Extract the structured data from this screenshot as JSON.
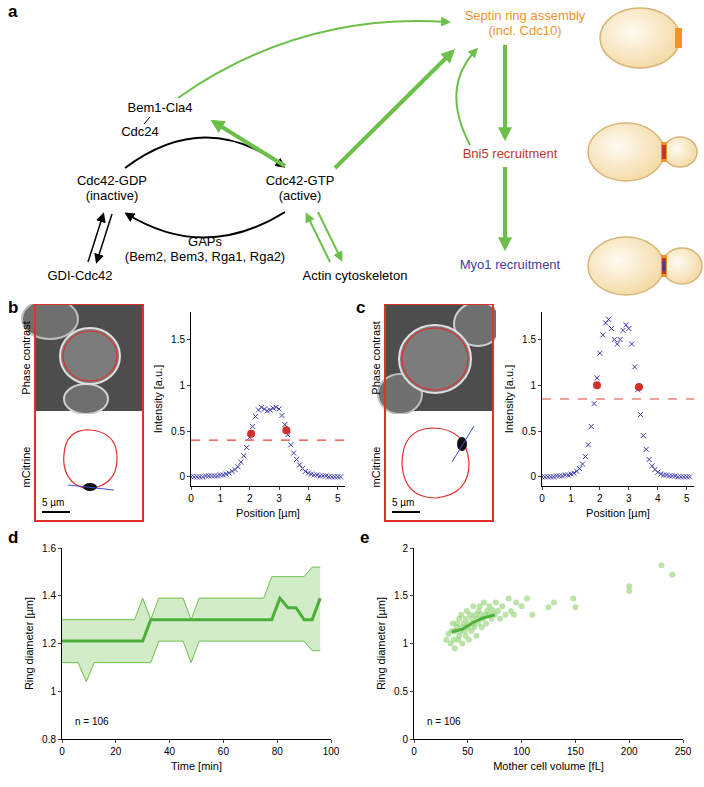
{
  "panel_labels": [
    "a",
    "b",
    "c",
    "d",
    "e"
  ],
  "diagram": {
    "nodes": {
      "bem1": {
        "lines": [
          "Bem1-Cla4"
        ],
        "color": "#000000"
      },
      "cdc24": {
        "lines": [
          "Cdc24"
        ],
        "color": "#000000"
      },
      "gdp": {
        "lines": [
          "Cdc42-GDP",
          "(inactive)"
        ],
        "color": "#000000"
      },
      "gtp": {
        "lines": [
          "Cdc42-GTP",
          "(active)"
        ],
        "color": "#000000"
      },
      "gdi": {
        "lines": [
          "GDI-Cdc42"
        ],
        "color": "#000000"
      },
      "gaps": {
        "lines": [
          "GAPs",
          "(Bem2, Bem3, Rga1, Rga2)"
        ],
        "color": "#000000"
      },
      "actin": {
        "lines": [
          "Actin cytoskeleton"
        ],
        "color": "#000000"
      },
      "septin": {
        "lines": [
          "Septin ring assembly",
          "(incl. Cdc10)"
        ],
        "color": "#f0932b"
      },
      "bni5": {
        "lines": [
          "Bni5 recruitment"
        ],
        "color": "#c0392b"
      },
      "myo1": {
        "lines": [
          "Myo1 recruitment"
        ],
        "color": "#3f3fa0"
      }
    }
  },
  "images": [
    {
      "channels": [
        "Phase contrast",
        "mCitrine"
      ],
      "scale_bar": "5 µm"
    },
    {
      "channels": [
        "Phase contrast",
        "mCitrine"
      ],
      "scale_bar": "5 µm"
    }
  ],
  "chart_data": [
    {
      "type": "scatter",
      "x": [
        0,
        0.1,
        0.2,
        0.3,
        0.4,
        0.5,
        0.6,
        0.7,
        0.8,
        0.9,
        1,
        1.1,
        1.2,
        1.3,
        1.4,
        1.5,
        1.6,
        1.7,
        1.8,
        1.9,
        2,
        2.1,
        2.2,
        2.3,
        2.4,
        2.5,
        2.6,
        2.7,
        2.8,
        2.9,
        3,
        3.1,
        3.2,
        3.3,
        3.4,
        3.5,
        3.6,
        3.7,
        3.8,
        3.9,
        4,
        4.1,
        4.2,
        4.3,
        4.4,
        4.5,
        4.6,
        4.7,
        4.8,
        4.9,
        5,
        5.1
      ],
      "xlim": [
        0,
        5.25
      ],
      "xticks": [
        0,
        1,
        2,
        3,
        4,
        5
      ],
      "ylim": [
        -0.1,
        1.8
      ],
      "yticks": [
        0,
        0.5,
        1,
        1.5
      ],
      "x_label": "Position [µm]",
      "y_label": "Intensity [a.u.]",
      "grid": false,
      "series": [
        {
          "type": "scatter",
          "marker": "x",
          "color": "#3a3ab0",
          "values": [
            0,
            0,
            0,
            0,
            0,
            0.01,
            0.01,
            0.01,
            0.01,
            0.01,
            0.02,
            0.02,
            0.03,
            0.04,
            0.06,
            0.08,
            0.11,
            0.16,
            0.23,
            0.32,
            0.43,
            0.55,
            0.66,
            0.73,
            0.76,
            0.74,
            0.72,
            0.73,
            0.75,
            0.76,
            0.74,
            0.67,
            0.57,
            0.46,
            0.35,
            0.26,
            0.19,
            0.13,
            0.09,
            0.06,
            0.04,
            0.03,
            0.02,
            0.02,
            0.01,
            0.01,
            0.01,
            0,
            0,
            0,
            0,
            0
          ]
        },
        {
          "type": "scatter",
          "marker": "circle",
          "color": "#d0312d",
          "x": [
            2.05,
            3.25
          ],
          "values": [
            0.47,
            0.51
          ]
        },
        {
          "type": "line",
          "line_style": "dashed",
          "color": "#e8403a",
          "x": [
            0,
            5.25
          ],
          "values": [
            0.4,
            0.4
          ]
        }
      ]
    },
    {
      "type": "scatter",
      "x": [
        0,
        0.1,
        0.2,
        0.3,
        0.4,
        0.5,
        0.6,
        0.7,
        0.8,
        0.9,
        1,
        1.1,
        1.2,
        1.3,
        1.4,
        1.5,
        1.6,
        1.7,
        1.8,
        1.9,
        2,
        2.1,
        2.2,
        2.3,
        2.4,
        2.5,
        2.6,
        2.7,
        2.8,
        2.9,
        3,
        3.1,
        3.2,
        3.3,
        3.4,
        3.5,
        3.6,
        3.7,
        3.8,
        3.9,
        4,
        4.1,
        4.2,
        4.3,
        4.4,
        4.5,
        4.6,
        4.7,
        4.8,
        4.9,
        5,
        5.1
      ],
      "xlim": [
        0,
        5.25
      ],
      "xticks": [
        0,
        1,
        2,
        3,
        4,
        5
      ],
      "ylim": [
        -0.1,
        1.8
      ],
      "yticks": [
        0,
        0.5,
        1,
        1.5
      ],
      "x_label": "Position [µm]",
      "y_label": "Intensity [a.u.]",
      "grid": false,
      "series": [
        {
          "type": "scatter",
          "marker": "x",
          "color": "#3a3ab0",
          "values": [
            0,
            0,
            0,
            0,
            0,
            0.01,
            0.01,
            0.01,
            0.02,
            0.02,
            0.03,
            0.04,
            0.06,
            0.09,
            0.14,
            0.22,
            0.35,
            0.55,
            0.8,
            1.08,
            1.35,
            1.55,
            1.68,
            1.72,
            1.62,
            1.5,
            1.45,
            1.5,
            1.6,
            1.66,
            1.62,
            1.45,
            1.2,
            0.95,
            0.68,
            0.45,
            0.3,
            0.19,
            0.12,
            0.08,
            0.05,
            0.03,
            0.02,
            0.02,
            0.01,
            0.01,
            0.01,
            0,
            0,
            0,
            0,
            0
          ]
        },
        {
          "type": "scatter",
          "marker": "circle",
          "color": "#d0312d",
          "x": [
            1.9,
            3.35
          ],
          "values": [
            1.0,
            0.98
          ]
        },
        {
          "type": "line",
          "line_style": "dashed",
          "color": "#e8403a",
          "x": [
            0,
            5.25
          ],
          "values": [
            0.85,
            0.85
          ]
        }
      ]
    },
    {
      "type": "line",
      "x": [
        0,
        3,
        6,
        9,
        12,
        15,
        18,
        21,
        24,
        27,
        30,
        33,
        36,
        39,
        42,
        45,
        48,
        51,
        54,
        57,
        60,
        63,
        66,
        69,
        72,
        75,
        78,
        81,
        84,
        87,
        90,
        93,
        96
      ],
      "xlim": [
        0,
        100
      ],
      "xticks": [
        0,
        20,
        40,
        60,
        80,
        100
      ],
      "ylim": [
        0.8,
        1.6
      ],
      "yticks": [
        0.8,
        1,
        1.2,
        1.4,
        1.6
      ],
      "x_label": "Time [min]",
      "y_label": "Ring diameter [µm]",
      "grid": false,
      "annotations": [
        "n = 106"
      ],
      "series": [
        {
          "type": "band",
          "color": "#6cc04a",
          "lower": [
            1.12,
            1.12,
            1.12,
            1.04,
            1.12,
            1.12,
            1.12,
            1.12,
            1.12,
            1.12,
            1.12,
            1.12,
            1.21,
            1.21,
            1.21,
            1.21,
            1.12,
            1.21,
            1.21,
            1.21,
            1.21,
            1.21,
            1.21,
            1.21,
            1.21,
            1.21,
            1.21,
            1.21,
            1.21,
            1.21,
            1.21,
            1.17,
            1.17
          ],
          "upper": [
            1.3,
            1.3,
            1.3,
            1.3,
            1.3,
            1.3,
            1.3,
            1.3,
            1.3,
            1.3,
            1.39,
            1.3,
            1.39,
            1.39,
            1.39,
            1.39,
            1.3,
            1.39,
            1.39,
            1.39,
            1.39,
            1.39,
            1.39,
            1.39,
            1.39,
            1.39,
            1.48,
            1.48,
            1.48,
            1.48,
            1.48,
            1.52,
            1.52
          ]
        },
        {
          "type": "line",
          "line_style": "solid",
          "color": "#4caf3a",
          "values": [
            1.21,
            1.21,
            1.21,
            1.21,
            1.21,
            1.21,
            1.21,
            1.21,
            1.21,
            1.21,
            1.21,
            1.3,
            1.3,
            1.3,
            1.3,
            1.3,
            1.3,
            1.3,
            1.3,
            1.3,
            1.3,
            1.3,
            1.3,
            1.3,
            1.3,
            1.3,
            1.3,
            1.39,
            1.35,
            1.35,
            1.3,
            1.3,
            1.39
          ]
        }
      ]
    },
    {
      "type": "scatter",
      "xlim": [
        0,
        250
      ],
      "xticks": [
        0,
        50,
        100,
        150,
        200,
        250
      ],
      "ylim": [
        0,
        2
      ],
      "yticks": [
        0,
        0.5,
        1,
        1.5,
        2
      ],
      "x_label": "Mother cell volume [fL]",
      "y_label": "Ring diameter [µm]",
      "grid": false,
      "annotations": [
        "n = 106"
      ],
      "series": [
        {
          "type": "scatter",
          "marker": "circle",
          "color": "#8fd16f",
          "x": [
            30,
            32,
            34,
            35,
            36,
            37,
            38,
            38,
            40,
            40,
            41,
            42,
            42,
            43,
            44,
            45,
            45,
            46,
            47,
            48,
            48,
            49,
            50,
            50,
            51,
            52,
            53,
            54,
            55,
            55,
            56,
            57,
            58,
            59,
            60,
            60,
            61,
            62,
            63,
            64,
            65,
            66,
            67,
            68,
            70,
            70,
            72,
            73,
            75,
            76,
            78,
            80,
            82,
            85,
            88,
            90,
            93,
            95,
            100,
            105,
            110,
            125,
            130,
            148,
            150,
            200,
            200,
            230,
            240
          ],
          "values": [
            1.04,
            1.1,
            1.0,
            1.13,
            1.21,
            1.04,
            0.95,
            1.13,
            1.17,
            1.21,
            1.04,
            1.08,
            1.26,
            1.13,
            1.3,
            1.17,
            1.0,
            1.21,
            1.13,
            1.08,
            1.26,
            1.34,
            1.17,
            1.21,
            1.04,
            1.3,
            1.13,
            1.26,
            1.21,
            1.39,
            1.17,
            1.3,
            1.08,
            1.26,
            1.21,
            1.34,
            1.39,
            1.3,
            1.17,
            1.26,
            1.43,
            1.3,
            1.21,
            1.34,
            1.3,
            1.39,
            1.26,
            1.35,
            1.3,
            1.43,
            1.34,
            1.26,
            1.39,
            1.3,
            1.47,
            1.34,
            1.3,
            1.43,
            1.39,
            1.47,
            1.3,
            1.38,
            1.43,
            1.47,
            1.38,
            1.6,
            1.55,
            1.82,
            1.72
          ]
        },
        {
          "type": "line",
          "line_style": "solid",
          "color": "#4caf3a",
          "x": [
            35,
            45,
            55,
            65,
            75
          ],
          "values": [
            1.12,
            1.15,
            1.22,
            1.27,
            1.3
          ]
        }
      ]
    }
  ]
}
